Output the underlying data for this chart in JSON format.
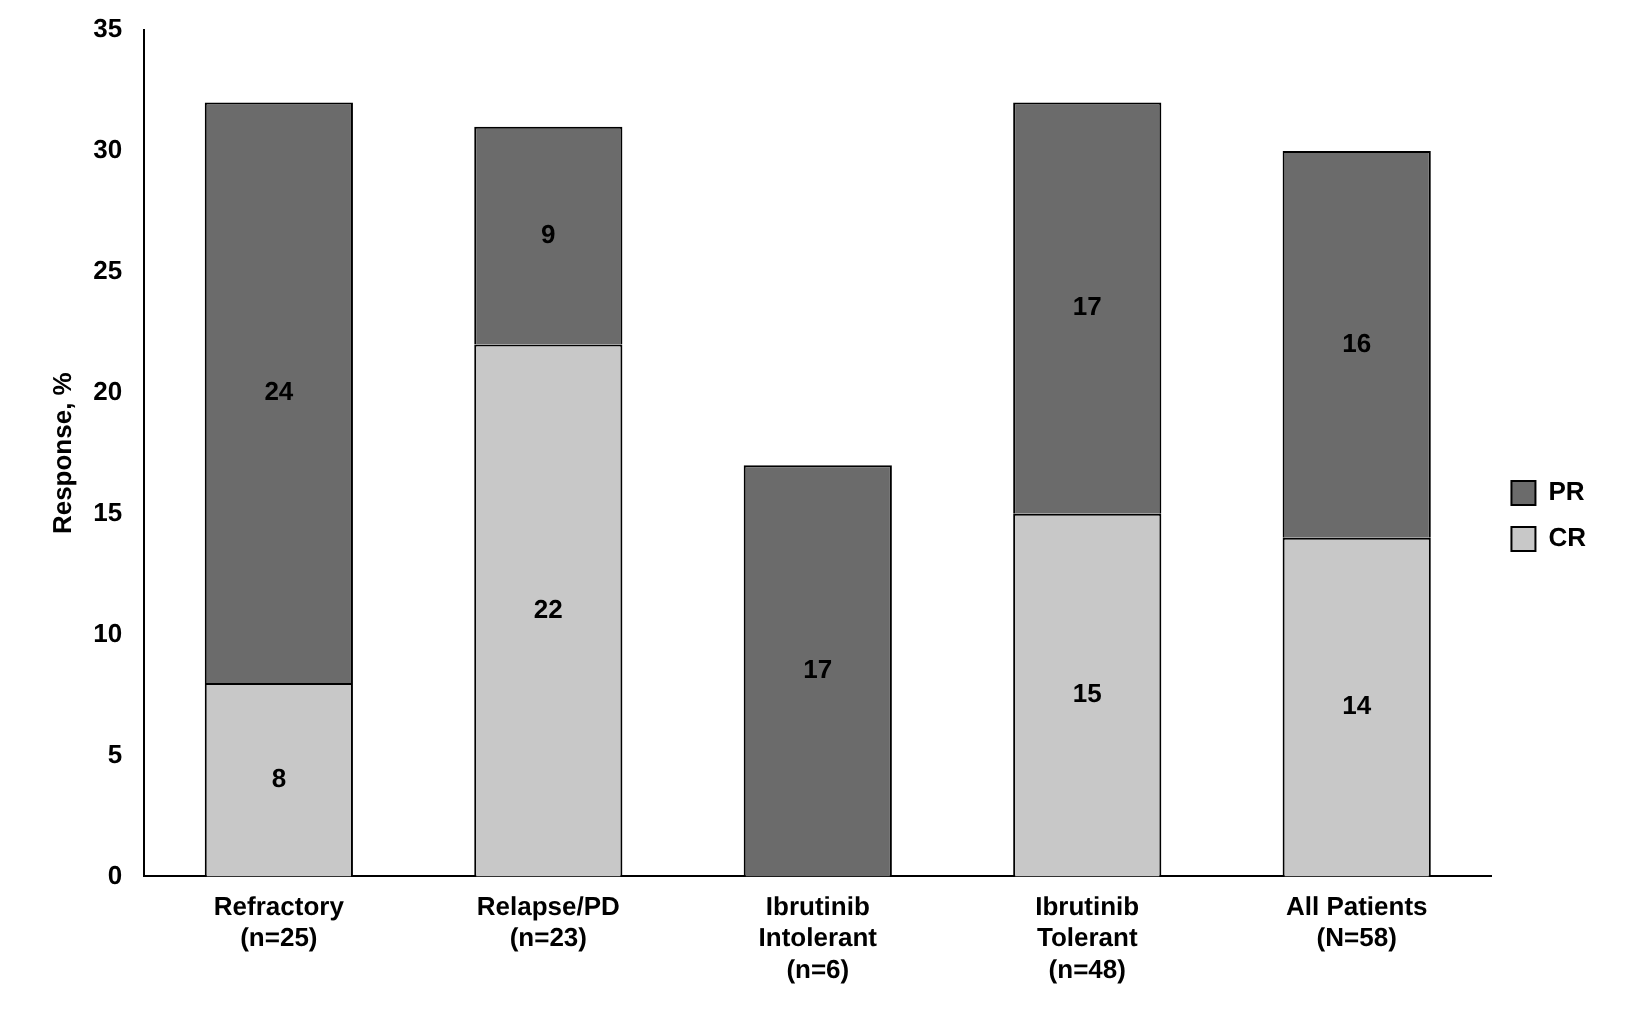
{
  "chart_data": {
    "type": "bar",
    "stacked": true,
    "ylabel": "Response, %",
    "categories": [
      "Refractory\n(n=25)",
      "Relapse/PD\n(n=23)",
      "Ibrutinib\nIntolerant\n(n=6)",
      "Ibrutinib\nTolerant\n(n=48)",
      "All Patients\n(N=58)"
    ],
    "series": [
      {
        "name": "CR",
        "color": "#c8c8c8",
        "values": [
          8,
          22,
          null,
          15,
          14
        ]
      },
      {
        "name": "PR",
        "color": "#6b6b6b",
        "values": [
          24,
          9,
          17,
          17,
          16
        ]
      }
    ],
    "ylim": [
      0,
      35
    ],
    "yticks": [
      0,
      5,
      10,
      15,
      20,
      25,
      30,
      35
    ],
    "grid": false,
    "legend": "right",
    "data_labels": true
  }
}
